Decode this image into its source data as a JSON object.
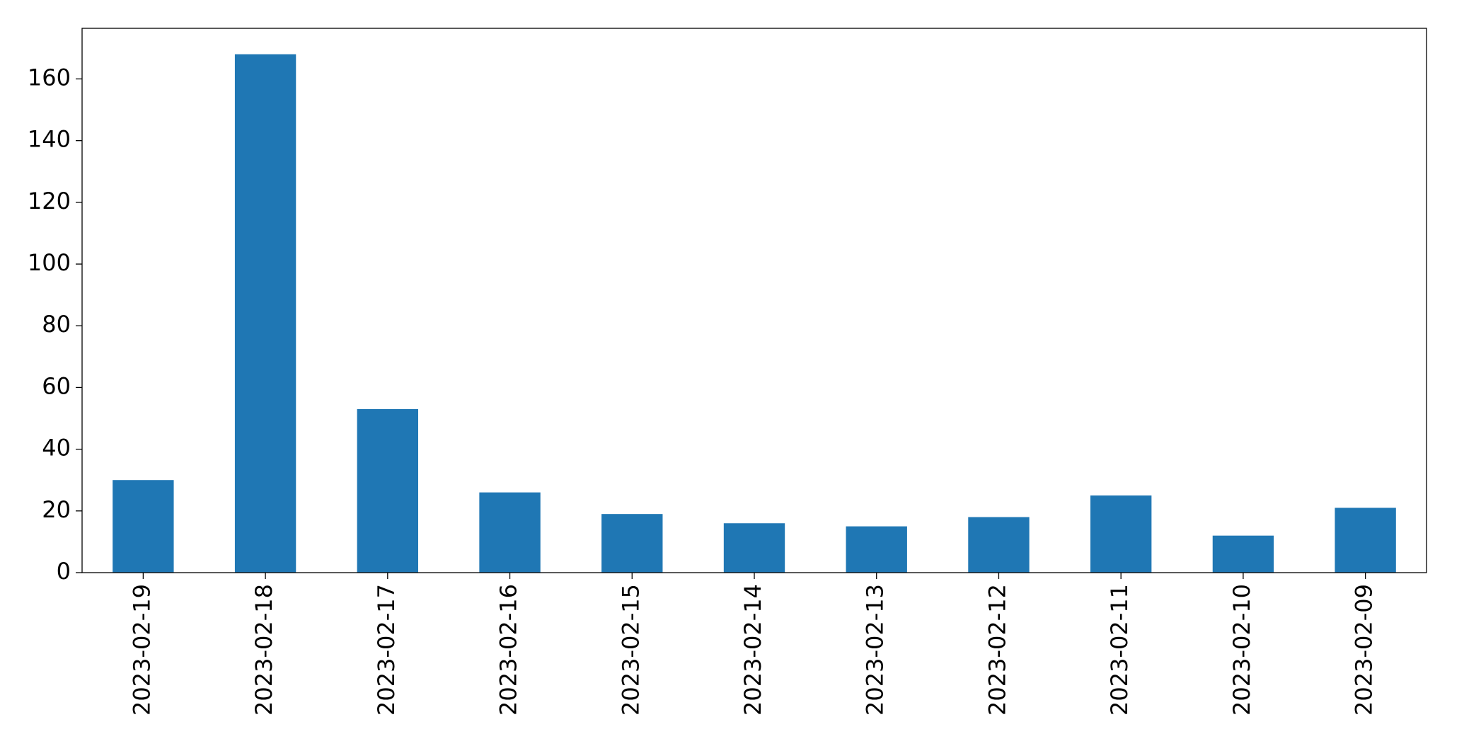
{
  "chart_data": {
    "type": "bar",
    "categories": [
      "2023-02-19",
      "2023-02-18",
      "2023-02-17",
      "2023-02-16",
      "2023-02-15",
      "2023-02-14",
      "2023-02-13",
      "2023-02-12",
      "2023-02-11",
      "2023-02-10",
      "2023-02-09"
    ],
    "values": [
      30,
      168,
      53,
      26,
      19,
      16,
      15,
      18,
      25,
      12,
      21
    ],
    "color": "#1f77b4",
    "ylim": [
      0,
      176.4
    ],
    "yticks": [
      0,
      20,
      40,
      60,
      80,
      100,
      120,
      140,
      160
    ],
    "grid": false
  }
}
